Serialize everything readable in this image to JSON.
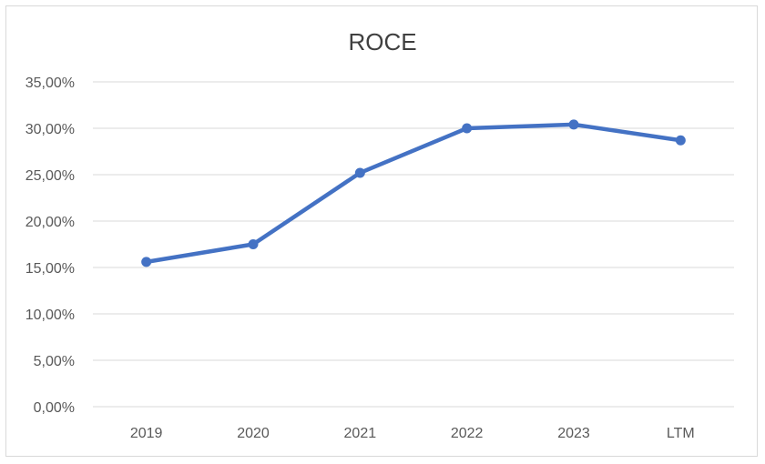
{
  "chart_data": {
    "type": "line",
    "title": "ROCE",
    "xlabel": "",
    "ylabel": "",
    "categories": [
      "2019",
      "2020",
      "2021",
      "2022",
      "2023",
      "LTM"
    ],
    "series": [
      {
        "values": [
          15.6,
          17.5,
          25.2,
          30.0,
          30.4,
          28.7
        ],
        "color": "#4472c4"
      }
    ],
    "ylim": [
      0,
      35
    ],
    "yticks": [
      0,
      5,
      10,
      15,
      20,
      25,
      30,
      35
    ],
    "ytick_labels": [
      "0,00%",
      "5,00%",
      "10,00%",
      "15,00%",
      "20,00%",
      "25,00%",
      "30,00%",
      "35,00%"
    ],
    "grid": true,
    "legend": "none",
    "markers": true
  }
}
